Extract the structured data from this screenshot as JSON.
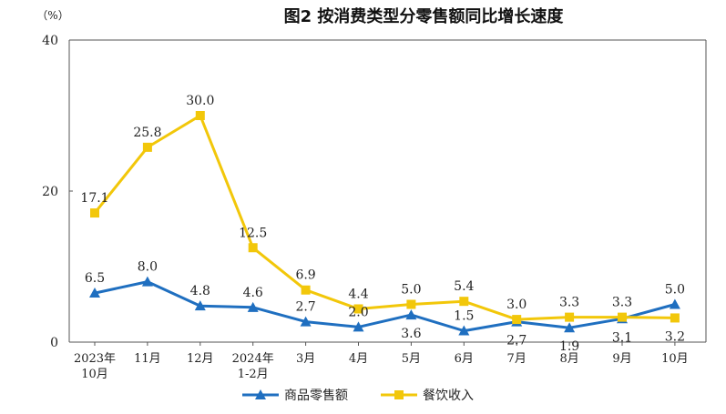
{
  "chart_data": {
    "type": "line",
    "title": "图2 按消费类型分零售额同比增长速度",
    "unit": "（%）",
    "categories": [
      [
        "2023年",
        "10月"
      ],
      [
        "11月"
      ],
      [
        "12月"
      ],
      [
        "2024年",
        "1-2月"
      ],
      [
        "3月"
      ],
      [
        "4月"
      ],
      [
        "5月"
      ],
      [
        "6月"
      ],
      [
        "7月"
      ],
      [
        "8月"
      ],
      [
        "9月"
      ],
      [
        "10月"
      ]
    ],
    "ylim": [
      0,
      40
    ],
    "yticks": [
      0,
      20,
      40
    ],
    "grid": false,
    "legend_position": "bottom",
    "series": [
      {
        "name": "商品零售额",
        "color": "#1f6fc0",
        "marker": "triangle",
        "values": [
          6.5,
          8.0,
          4.8,
          4.6,
          2.7,
          2.0,
          3.6,
          1.5,
          2.7,
          1.9,
          3.1,
          5.0
        ],
        "label_pos": [
          "above",
          "above",
          "above",
          "above",
          "above",
          "above",
          "below",
          "above",
          "below",
          "below",
          "below",
          "above"
        ]
      },
      {
        "name": "餐饮收入",
        "color": "#f2c70a",
        "marker": "square",
        "values": [
          17.1,
          25.8,
          30.0,
          12.5,
          6.9,
          4.4,
          5.0,
          5.4,
          3.0,
          3.3,
          3.3,
          3.2
        ],
        "label_pos": [
          "above",
          "above",
          "above",
          "above",
          "above",
          "above",
          "above",
          "above",
          "above",
          "above",
          "above",
          "below"
        ]
      }
    ]
  }
}
